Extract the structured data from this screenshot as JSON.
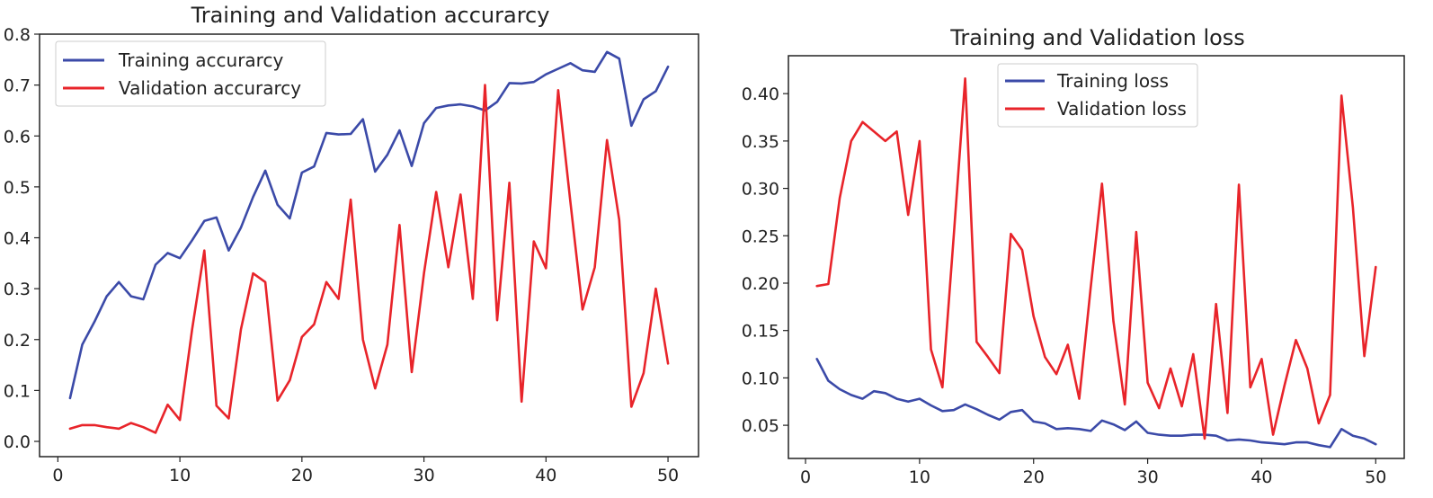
{
  "chart_data": [
    {
      "type": "line",
      "title": "Training and Validation accurarcy",
      "xlabel": "",
      "ylabel": "",
      "xlim": [
        -1.5,
        52.5
      ],
      "ylim": [
        -0.03,
        0.8
      ],
      "xticks": [
        0,
        10,
        20,
        30,
        40,
        50
      ],
      "yticks": [
        0.0,
        0.1,
        0.2,
        0.3,
        0.4,
        0.5,
        0.6,
        0.7,
        0.8
      ],
      "xtick_labels": [
        "0",
        "10",
        "20",
        "30",
        "40",
        "50"
      ],
      "ytick_labels": [
        "0.0",
        "0.1",
        "0.2",
        "0.3",
        "0.4",
        "0.5",
        "0.6",
        "0.7",
        "0.8"
      ],
      "legend_position": "top-left",
      "grid": false,
      "x": [
        1,
        2,
        3,
        4,
        5,
        6,
        7,
        8,
        9,
        10,
        11,
        12,
        13,
        14,
        15,
        16,
        17,
        18,
        19,
        20,
        21,
        22,
        23,
        24,
        25,
        26,
        27,
        28,
        29,
        30,
        31,
        32,
        33,
        34,
        35,
        36,
        37,
        38,
        39,
        40,
        41,
        42,
        43,
        44,
        45,
        46,
        47,
        48,
        49,
        50
      ],
      "series": [
        {
          "name": "Training accurarcy",
          "color": "#3b4aa8",
          "values": [
            0.085,
            0.19,
            0.235,
            0.285,
            0.313,
            0.285,
            0.279,
            0.347,
            0.37,
            0.36,
            0.395,
            0.433,
            0.44,
            0.375,
            0.42,
            0.48,
            0.532,
            0.465,
            0.438,
            0.528,
            0.54,
            0.606,
            0.603,
            0.604,
            0.633,
            0.53,
            0.563,
            0.611,
            0.541,
            0.625,
            0.655,
            0.66,
            0.662,
            0.658,
            0.65,
            0.667,
            0.704,
            0.703,
            0.706,
            0.721,
            0.732,
            0.743,
            0.729,
            0.726,
            0.765,
            0.752,
            0.62,
            0.672,
            0.688,
            0.736
          ]
        },
        {
          "name": "Validation accurarcy",
          "color": "#e8242a",
          "values": [
            0.025,
            0.032,
            0.032,
            0.028,
            0.025,
            0.036,
            0.028,
            0.017,
            0.072,
            0.042,
            0.22,
            0.375,
            0.07,
            0.045,
            0.22,
            0.33,
            0.313,
            0.08,
            0.12,
            0.205,
            0.23,
            0.313,
            0.28,
            0.475,
            0.2,
            0.104,
            0.19,
            0.425,
            0.136,
            0.33,
            0.49,
            0.342,
            0.485,
            0.28,
            0.7,
            0.238,
            0.508,
            0.078,
            0.393,
            0.34,
            0.69,
            0.47,
            0.259,
            0.342,
            0.592,
            0.435,
            0.068,
            0.134,
            0.3,
            0.153
          ]
        }
      ]
    },
    {
      "type": "line",
      "title": "Training and Validation loss",
      "xlabel": "",
      "ylabel": "",
      "xlim": [
        -1.5,
        52.5
      ],
      "ylim": [
        0.015,
        0.44
      ],
      "xticks": [
        0,
        10,
        20,
        30,
        40,
        50
      ],
      "yticks": [
        0.05,
        0.1,
        0.15,
        0.2,
        0.25,
        0.3,
        0.35,
        0.4
      ],
      "xtick_labels": [
        "0",
        "10",
        "20",
        "30",
        "40",
        "50"
      ],
      "ytick_labels": [
        "0.05",
        "0.10",
        "0.15",
        "0.20",
        "0.25",
        "0.30",
        "0.35",
        "0.40"
      ],
      "legend_position": "top-center",
      "grid": false,
      "x": [
        1,
        2,
        3,
        4,
        5,
        6,
        7,
        8,
        9,
        10,
        11,
        12,
        13,
        14,
        15,
        16,
        17,
        18,
        19,
        20,
        21,
        22,
        23,
        24,
        25,
        26,
        27,
        28,
        29,
        30,
        31,
        32,
        33,
        34,
        35,
        36,
        37,
        38,
        39,
        40,
        41,
        42,
        43,
        44,
        45,
        46,
        47,
        48,
        49,
        50
      ],
      "series": [
        {
          "name": "Training loss",
          "color": "#3b4aa8",
          "values": [
            0.12,
            0.097,
            0.088,
            0.082,
            0.078,
            0.086,
            0.084,
            0.078,
            0.075,
            0.078,
            0.071,
            0.065,
            0.066,
            0.072,
            0.067,
            0.061,
            0.056,
            0.064,
            0.066,
            0.054,
            0.052,
            0.046,
            0.047,
            0.046,
            0.044,
            0.055,
            0.051,
            0.045,
            0.054,
            0.042,
            0.04,
            0.039,
            0.039,
            0.04,
            0.04,
            0.039,
            0.034,
            0.035,
            0.034,
            0.032,
            0.031,
            0.03,
            0.032,
            0.032,
            0.029,
            0.027,
            0.046,
            0.039,
            0.036,
            0.03
          ]
        },
        {
          "name": "Validation loss",
          "color": "#e8242a",
          "values": [
            0.197,
            0.199,
            0.29,
            0.35,
            0.37,
            0.36,
            0.35,
            0.36,
            0.272,
            0.35,
            0.13,
            0.09,
            0.25,
            0.416,
            0.138,
            0.122,
            0.105,
            0.252,
            0.235,
            0.165,
            0.122,
            0.104,
            0.135,
            0.078,
            0.195,
            0.305,
            0.16,
            0.072,
            0.254,
            0.095,
            0.068,
            0.11,
            0.07,
            0.125,
            0.036,
            0.178,
            0.063,
            0.304,
            0.09,
            0.12,
            0.04,
            0.092,
            0.14,
            0.11,
            0.052,
            0.082,
            0.398,
            0.28,
            0.123,
            0.217
          ]
        }
      ]
    }
  ]
}
